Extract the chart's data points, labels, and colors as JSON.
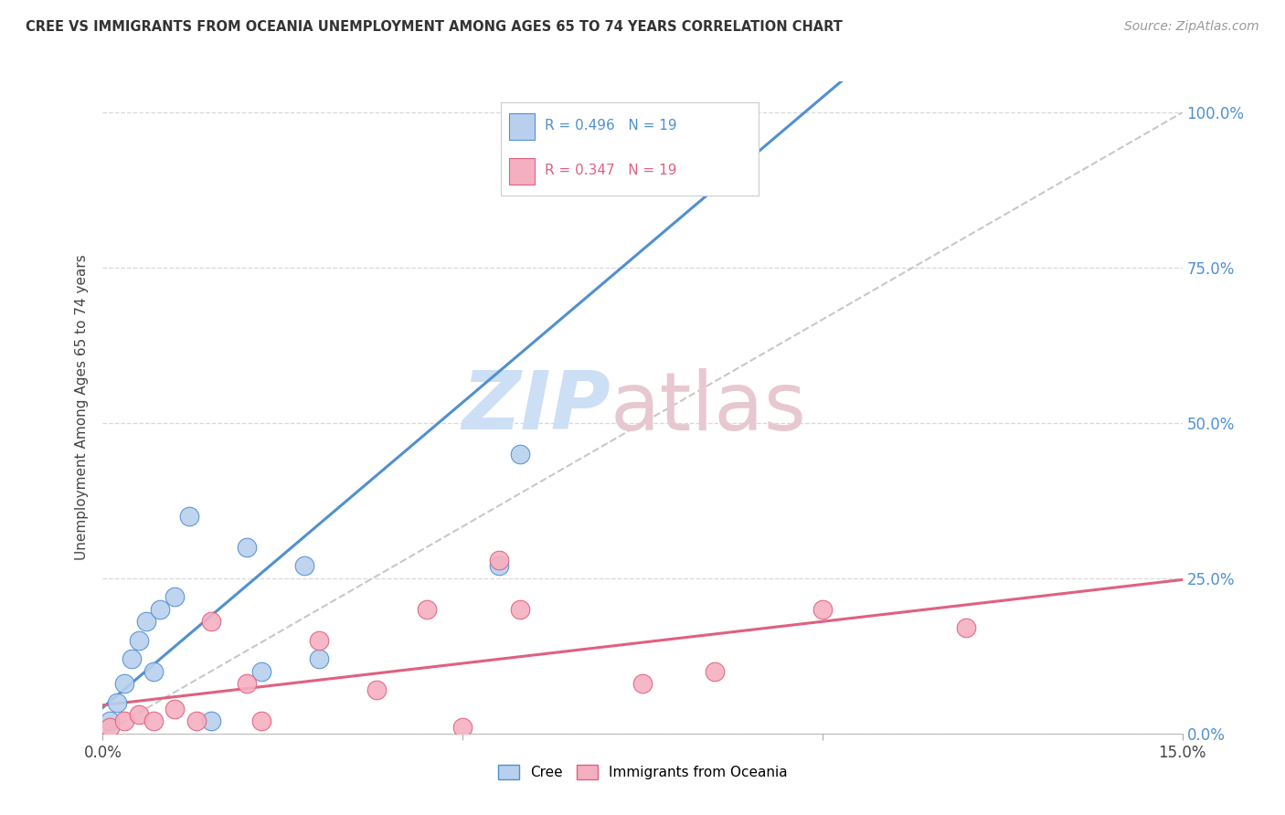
{
  "title": "CREE VS IMMIGRANTS FROM OCEANIA UNEMPLOYMENT AMONG AGES 65 TO 74 YEARS CORRELATION CHART",
  "source": "Source: ZipAtlas.com",
  "ylabel": "Unemployment Among Ages 65 to 74 years",
  "xlim": [
    0.0,
    0.15
  ],
  "ylim": [
    0.0,
    1.05
  ],
  "xticks": [
    0.0,
    0.05,
    0.1,
    0.15
  ],
  "xtick_labels": [
    "0.0%",
    "",
    "",
    "15.0%"
  ],
  "yticks": [
    0.0,
    0.25,
    0.5,
    0.75,
    1.0
  ],
  "ytick_labels_right": [
    "0.0%",
    "25.0%",
    "50.0%",
    "75.0%",
    "100.0%"
  ],
  "cree_R": 0.496,
  "cree_N": 19,
  "oceania_R": 0.347,
  "oceania_N": 19,
  "cree_color": "#b8d0ee",
  "oceania_color": "#f5b0c0",
  "cree_line_color": "#5090d0",
  "oceania_line_color": "#e06080",
  "ref_line_color": "#c8c8c8",
  "background_color": "#ffffff",
  "grid_color": "#d8d8d8",
  "watermark_zip_color": "#ccdff5",
  "watermark_atlas_color": "#e8c8d0",
  "cree_x": [
    0.001,
    0.002,
    0.003,
    0.004,
    0.005,
    0.006,
    0.007,
    0.008,
    0.01,
    0.012,
    0.015,
    0.02,
    0.022,
    0.028,
    0.03,
    0.055,
    0.058,
    0.06,
    0.082
  ],
  "cree_y": [
    0.02,
    0.05,
    0.08,
    0.12,
    0.15,
    0.18,
    0.1,
    0.2,
    0.22,
    0.35,
    0.02,
    0.3,
    0.1,
    0.27,
    0.12,
    0.27,
    0.45,
    1.0,
    1.0
  ],
  "oceania_x": [
    0.001,
    0.003,
    0.005,
    0.007,
    0.01,
    0.013,
    0.015,
    0.02,
    0.022,
    0.03,
    0.038,
    0.045,
    0.05,
    0.055,
    0.058,
    0.075,
    0.085,
    0.1,
    0.12
  ],
  "oceania_y": [
    0.01,
    0.02,
    0.03,
    0.02,
    0.04,
    0.02,
    0.18,
    0.08,
    0.02,
    0.15,
    0.07,
    0.2,
    0.01,
    0.28,
    0.2,
    0.08,
    0.1,
    0.2,
    0.17
  ]
}
